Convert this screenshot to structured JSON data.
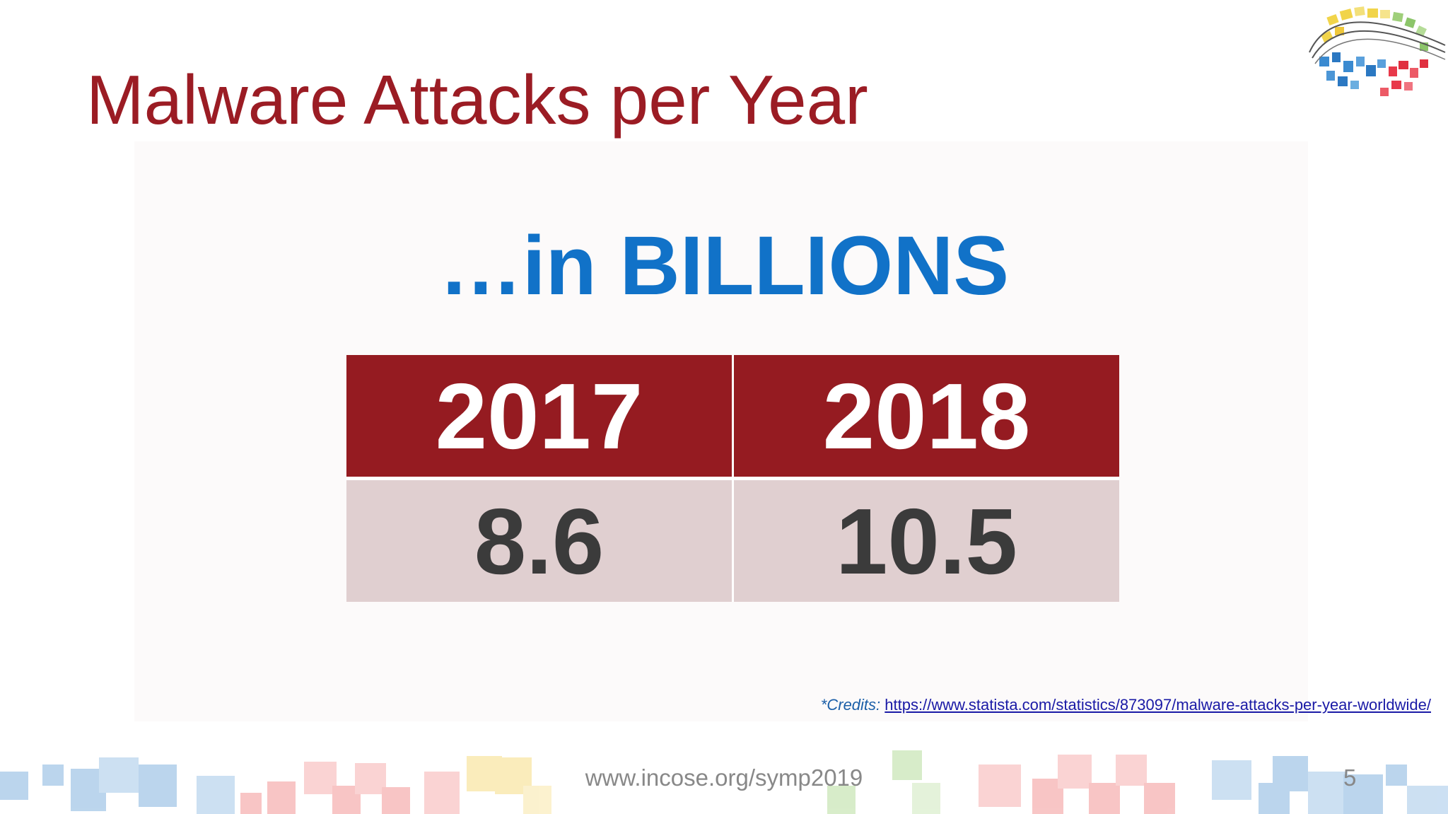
{
  "slide": {
    "title": "Malware Attacks per Year",
    "subtitle": "…in BILLIONS",
    "table": {
      "headers": [
        "2017",
        "2018"
      ],
      "values": [
        "8.6",
        "10.5"
      ]
    },
    "credits": {
      "label": "*Credits:",
      "link": "https://www.statista.com/statistics/873097/malware-attacks-per-year-worldwide/"
    },
    "footer_url": "www.incose.org/symp2019",
    "page_number": "5"
  },
  "colors": {
    "title": "#9b1c24",
    "subtitle": "#1172c8",
    "table_header_bg": "#951b21",
    "table_value_bg": "#e0cfd0"
  },
  "icons": [
    "incose-globe-logo"
  ]
}
